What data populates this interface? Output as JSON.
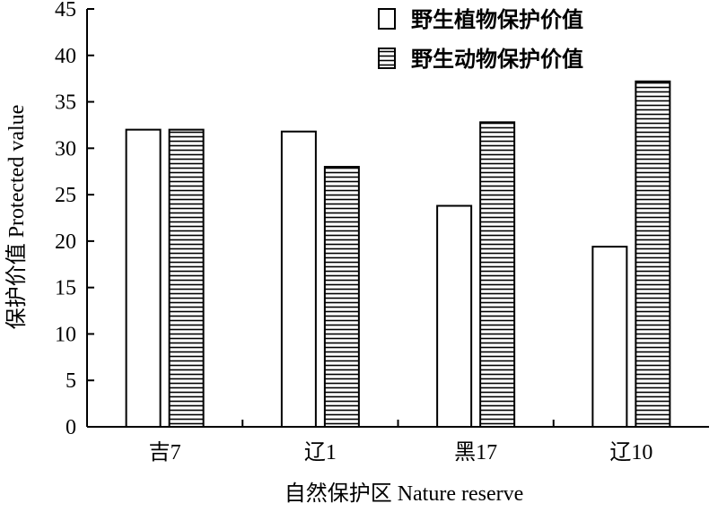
{
  "chart_data": {
    "type": "bar",
    "categories": [
      "吉7",
      "辽1",
      "黑17",
      "辽10"
    ],
    "series": [
      {
        "name": "野生植物保护价值",
        "values": [
          32,
          31.8,
          23.8,
          19.4
        ],
        "pattern": "empty"
      },
      {
        "name": "野生动物保护价值",
        "values": [
          32,
          28,
          32.8,
          37.2
        ],
        "pattern": "horizontal-lines"
      }
    ],
    "xlabel": "自然保护区 Nature reserve",
    "ylabel": "保护价值 Protected value",
    "ylim": [
      0,
      45
    ],
    "yticks": [
      0,
      5,
      10,
      15,
      20,
      25,
      30,
      35,
      40,
      45
    ],
    "grid": false,
    "legend_position": "top-right"
  }
}
